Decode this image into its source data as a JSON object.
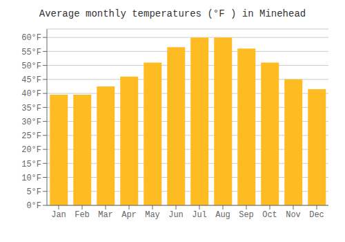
{
  "chart_data": {
    "type": "bar",
    "title": "Average monthly temperatures (°F ) in Minehead",
    "categories": [
      "Jan",
      "Feb",
      "Mar",
      "Apr",
      "May",
      "Jun",
      "Jul",
      "Aug",
      "Sep",
      "Oct",
      "Nov",
      "Dec"
    ],
    "values": [
      39.5,
      39.5,
      42.5,
      46,
      51,
      56.5,
      60,
      60,
      56,
      51,
      45,
      41.5
    ],
    "color": "#FFBB22",
    "ylim": [
      0,
      63
    ],
    "yticks": [
      {
        "value": 0,
        "label": "0°F"
      },
      {
        "value": 5,
        "label": "5°F"
      },
      {
        "value": 10,
        "label": "10°F"
      },
      {
        "value": 15,
        "label": "15°F"
      },
      {
        "value": 20,
        "label": "20°F"
      },
      {
        "value": 25,
        "label": "25°F"
      },
      {
        "value": 30,
        "label": "30°F"
      },
      {
        "value": 35,
        "label": "35°F"
      },
      {
        "value": 40,
        "label": "40°F"
      },
      {
        "value": 45,
        "label": "45°F"
      },
      {
        "value": 50,
        "label": "50°F"
      },
      {
        "value": 55,
        "label": "55°F"
      },
      {
        "value": 60,
        "label": "60°F"
      }
    ],
    "grid": true
  }
}
